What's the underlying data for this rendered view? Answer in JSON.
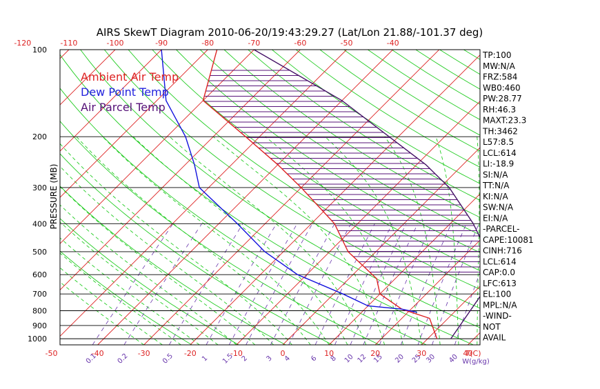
{
  "title": "AIRS SkewT Diagram 2010-06-20/19:43:29.27 (Lat/Lon 21.88/-101.37 deg)",
  "legend": [
    {
      "label": "Ambient Air Temp",
      "color": "#dd2222"
    },
    {
      "label": "Dew Point Temp",
      "color": "#2222dd"
    },
    {
      "label": "Air Parcel Temp",
      "color": "#551177"
    }
  ],
  "colors": {
    "isotherm": "#dd2222",
    "dry_adiabat": "#22cc22",
    "moist_adiabat": "#22cc22",
    "mixing_ratio": "#6633aa",
    "isobar": "#000000",
    "temperature": "#dd2222",
    "dewpoint": "#1111dd",
    "parcel": "#441166",
    "cape_hatch": "#551177"
  },
  "stats": [
    "TP:100",
    "MW:N/A",
    "FRZ:584",
    "WB0:460",
    "PW:28.77",
    "RH:46.3",
    "MAXT:23.3",
    "TH:3462",
    "L57:8.5",
    "LCL:614",
    "LI:-18.9",
    "SI:N/A",
    "TT:N/A",
    "KI:N/A",
    "SW:N/A",
    "EI:N/A",
    "-PARCEL-",
    "CAPE:10081",
    "CINH:716",
    "LCL:614",
    "CAP:0.0",
    "LFC:613",
    "EL:100",
    "MPL:N/A",
    "-WIND-",
    "NOT",
    "AVAIL"
  ],
  "chart_data": {
    "type": "line",
    "title": "AIRS SkewT Diagram 2010-06-20/19:43:29.27 (Lat/Lon 21.88/-101.37 deg)",
    "ylabel": "PRESSURE (MB)",
    "xlabel_bottom": "T(C)",
    "mixing_ratio_label": "W(g/kg)",
    "y_scale": "log",
    "ylim": [
      1050,
      100
    ],
    "y_ticks": [
      100,
      200,
      300,
      400,
      500,
      600,
      700,
      800,
      900,
      1000
    ],
    "x_ticks_bottom": [
      -50,
      -40,
      -30,
      -20,
      -10,
      0,
      10,
      20,
      30,
      40
    ],
    "x_ticks_top": [
      -120,
      -110,
      -100,
      -90,
      -80,
      -70,
      -60,
      -50,
      -40
    ],
    "mixing_ratio_ticks": [
      "0.1",
      "0.2",
      "0.5",
      "1",
      "1.5",
      "2",
      "3",
      "4",
      "6",
      "8",
      "10",
      "12",
      "15",
      "20",
      "25",
      "30",
      "40"
    ],
    "series": [
      {
        "name": "Ambient Air Temp",
        "points": [
          {
            "p": 1000,
            "t": 32
          },
          {
            "p": 850,
            "t": 26
          },
          {
            "p": 790,
            "t": 18
          },
          {
            "p": 700,
            "t": 10
          },
          {
            "p": 620,
            "t": 6
          },
          {
            "p": 500,
            "t": -6
          },
          {
            "p": 400,
            "t": -15
          },
          {
            "p": 300,
            "t": -30
          },
          {
            "p": 250,
            "t": -40
          },
          {
            "p": 200,
            "t": -53
          },
          {
            "p": 150,
            "t": -70
          },
          {
            "p": 100,
            "t": -78
          }
        ]
      },
      {
        "name": "Dew Point Temp",
        "points": [
          {
            "p": 810,
            "t": 22
          },
          {
            "p": 790,
            "t": 18
          },
          {
            "p": 770,
            "t": 10
          },
          {
            "p": 700,
            "t": 2
          },
          {
            "p": 600,
            "t": -12
          },
          {
            "p": 500,
            "t": -24
          },
          {
            "p": 400,
            "t": -36
          },
          {
            "p": 300,
            "t": -52
          },
          {
            "p": 250,
            "t": -58
          },
          {
            "p": 200,
            "t": -66
          },
          {
            "p": 150,
            "t": -78
          },
          {
            "p": 100,
            "t": -90
          }
        ]
      },
      {
        "name": "Air Parcel Temp",
        "points": [
          {
            "p": 1000,
            "t": 35
          },
          {
            "p": 620,
            "t": 31
          },
          {
            "p": 500,
            "t": 24
          },
          {
            "p": 400,
            "t": 15
          },
          {
            "p": 300,
            "t": 2
          },
          {
            "p": 250,
            "t": -8
          },
          {
            "p": 200,
            "t": -22
          },
          {
            "p": 150,
            "t": -40
          },
          {
            "p": 100,
            "t": -70
          }
        ]
      }
    ],
    "grid": true
  }
}
